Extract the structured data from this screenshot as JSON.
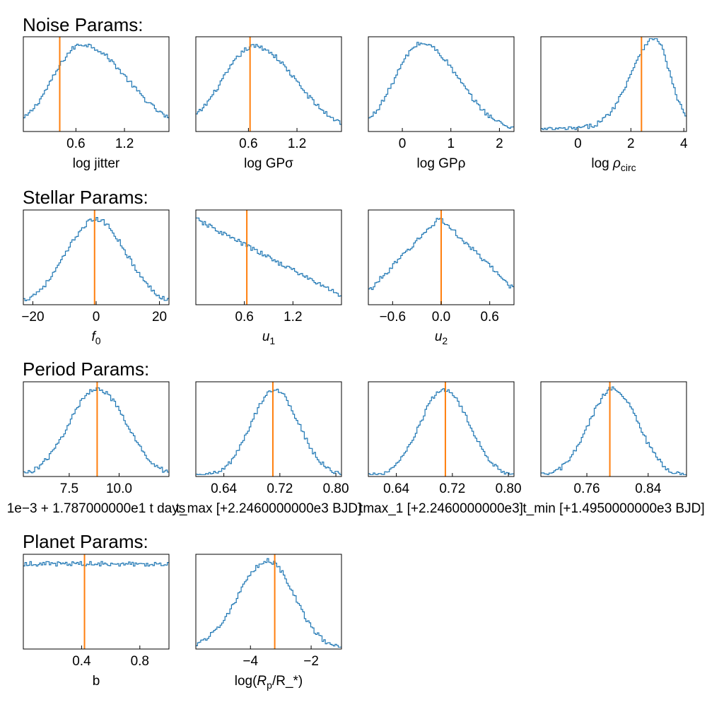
{
  "colors": {
    "histogram": "#1f77b4",
    "truth_line": "#ff7f0e",
    "frame": "#000000"
  },
  "sections": [
    {
      "title": "Noise Params:"
    },
    {
      "title": "Stellar Params:"
    },
    {
      "title": "Period Params:"
    },
    {
      "title": "Planet Params:"
    }
  ],
  "chart_data": [
    {
      "type": "histogram",
      "section": "Noise Params:",
      "xlabel": "log jitter",
      "xlim": [
        -0.05,
        1.75
      ],
      "ticks": [
        0.6,
        1.2
      ],
      "tick_labels": [
        "0.6",
        "1.2"
      ],
      "truth": 0.4,
      "shape": {
        "kind": "skew",
        "mode": 0.68,
        "sl": 0.37,
        "sr": 0.55,
        "amp": 0.92
      }
    },
    {
      "type": "histogram",
      "section": "Noise Params:",
      "xlabel": "log GPσ",
      "xlim": [
        -0.05,
        1.75
      ],
      "ticks": [
        0.6,
        1.2
      ],
      "tick_labels": [
        "0.6",
        "1.2"
      ],
      "truth": 0.62,
      "shape": {
        "kind": "skew",
        "mode": 0.68,
        "sl": 0.4,
        "sr": 0.5,
        "amp": 0.9
      }
    },
    {
      "type": "histogram",
      "section": "Noise Params:",
      "xlabel": "log GPρ",
      "xlim": [
        -0.7,
        2.3
      ],
      "ticks": [
        0,
        1,
        2
      ],
      "tick_labels": [
        "0",
        "1",
        "2"
      ],
      "truth": null,
      "shape": {
        "kind": "skew",
        "mode": 0.4,
        "sl": 0.55,
        "sr": 0.75,
        "amp": 0.93
      }
    },
    {
      "type": "histogram",
      "section": "Noise Params:",
      "xlabel": "log ρ_circ",
      "xlim": [
        -1.4,
        4.1
      ],
      "ticks": [
        0,
        2,
        4
      ],
      "tick_labels": [
        "0",
        "2",
        "4"
      ],
      "truth": 2.4,
      "shape": {
        "kind": "tail",
        "mode": 2.9,
        "sl": 0.9,
        "sr": 0.55,
        "amp": 0.93,
        "tail": 0.06,
        "tailk": 0.25
      }
    },
    {
      "type": "histogram",
      "section": "Stellar Params:",
      "xlabel": "f_0",
      "xlim": [
        -23,
        23
      ],
      "ticks": [
        -20,
        0,
        20
      ],
      "tick_labels": [
        "−20",
        "0",
        "20"
      ],
      "truth": -0.5,
      "shape": {
        "kind": "skew",
        "mode": 0,
        "sl": 9.5,
        "sr": 9.5,
        "amp": 0.9
      }
    },
    {
      "type": "histogram",
      "section": "Stellar Params:",
      "xlabel": "u_1",
      "xlim": [
        0,
        1.8
      ],
      "ticks": [
        0.6,
        1.2
      ],
      "tick_labels": [
        "0.6",
        "1.2"
      ],
      "truth": 0.63,
      "shape": {
        "kind": "linear",
        "y0": 0.9,
        "y1": 0.1
      }
    },
    {
      "type": "histogram",
      "section": "Stellar Params:",
      "xlabel": "u_2",
      "xlim": [
        -0.9,
        0.9
      ],
      "ticks": [
        -0.6,
        0.0,
        0.6
      ],
      "tick_labels": [
        "−0.6",
        "0.0",
        "0.6"
      ],
      "truth": 0.0,
      "shape": {
        "kind": "tent",
        "mode": -0.02,
        "yl": 0.14,
        "yr": 0.16,
        "amp": 0.92
      }
    },
    {
      "type": "histogram",
      "section": "Period Params:",
      "xlabel": "1e−3 + 1.787000000e1 t days",
      "xlim": [
        5.2,
        12.5
      ],
      "ticks": [
        7.5,
        10.0
      ],
      "tick_labels": [
        "7.5",
        "10.0"
      ],
      "truth": 8.9,
      "shape": {
        "kind": "skew",
        "mode": 8.9,
        "sl": 1.4,
        "sr": 1.45,
        "amp": 0.93
      }
    },
    {
      "type": "histogram",
      "section": "Period Params:",
      "xlabel": "t_max [+2.2460000000e3 BJD]",
      "xlim": [
        0.6,
        0.808
      ],
      "ticks": [
        0.64,
        0.72,
        0.8
      ],
      "tick_labels": [
        "0.64",
        "0.72",
        "0.80"
      ],
      "truth": 0.71,
      "shape": {
        "kind": "skew",
        "mode": 0.712,
        "sl": 0.033,
        "sr": 0.035,
        "amp": 0.92
      }
    },
    {
      "type": "histogram",
      "section": "Period Params:",
      "xlabel": "tmax_1 [+2.2460000000e3]",
      "xlim": [
        0.6,
        0.808
      ],
      "ticks": [
        0.64,
        0.72,
        0.8
      ],
      "tick_labels": [
        "0.64",
        "0.72",
        "0.80"
      ],
      "truth": 0.71,
      "shape": {
        "kind": "skew",
        "mode": 0.708,
        "sl": 0.034,
        "sr": 0.036,
        "amp": 0.92
      }
    },
    {
      "type": "histogram",
      "section": "Period Params:",
      "xlabel": "t_min [+1.4950000000e3 BJD]",
      "xlim": [
        0.7,
        0.89
      ],
      "ticks": [
        0.76,
        0.84
      ],
      "tick_labels": [
        "0.76",
        "0.84"
      ],
      "truth": 0.79,
      "shape": {
        "kind": "skew",
        "mode": 0.795,
        "sl": 0.032,
        "sr": 0.032,
        "amp": 0.93
      }
    },
    {
      "type": "histogram",
      "section": "Planet Params:",
      "xlabel": "b",
      "xlim": [
        0,
        1
      ],
      "ticks": [
        0.4,
        0.8
      ],
      "tick_labels": [
        "0.4",
        "0.8"
      ],
      "truth": 0.42,
      "shape": {
        "kind": "flat",
        "level": 0.9
      }
    },
    {
      "type": "histogram",
      "section": "Planet Params:",
      "xlabel": "log(R_p/R_*)",
      "xlim": [
        -5.8,
        -1.0
      ],
      "ticks": [
        -4,
        -2
      ],
      "tick_labels": [
        "−4",
        "−2"
      ],
      "truth": -3.2,
      "shape": {
        "kind": "skew",
        "mode": -3.4,
        "sl": 1.0,
        "sr": 0.85,
        "amp": 0.93
      }
    }
  ]
}
